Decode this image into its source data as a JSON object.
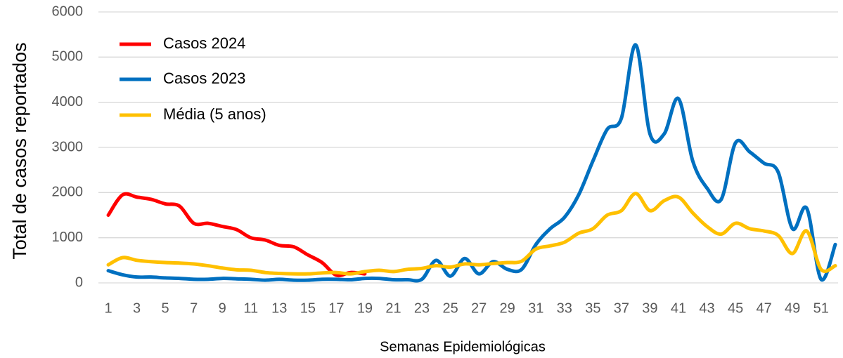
{
  "chart_data": {
    "type": "line",
    "x_label": "Semanas Epidemiológicas",
    "y_label": "Total de casos reportados",
    "x": [
      1,
      2,
      3,
      4,
      5,
      6,
      7,
      8,
      9,
      10,
      11,
      12,
      13,
      14,
      15,
      16,
      17,
      18,
      19,
      20,
      21,
      22,
      23,
      24,
      25,
      26,
      27,
      28,
      29,
      30,
      31,
      32,
      33,
      34,
      35,
      36,
      37,
      38,
      39,
      40,
      41,
      42,
      43,
      44,
      45,
      46,
      47,
      48,
      49,
      50,
      51,
      52
    ],
    "xlim": [
      1,
      52
    ],
    "xticks": [
      1,
      3,
      5,
      7,
      9,
      11,
      13,
      15,
      17,
      19,
      21,
      23,
      25,
      27,
      29,
      31,
      33,
      35,
      37,
      39,
      41,
      43,
      45,
      47,
      49,
      51
    ],
    "ylim": [
      0,
      6000
    ],
    "yticks": [
      0,
      1000,
      2000,
      3000,
      4000,
      5000,
      6000
    ],
    "grid": true,
    "legend": "upper left",
    "series": [
      {
        "name": "Casos 2024",
        "color": "#ff0000",
        "values": [
          1500,
          1950,
          1900,
          1850,
          1750,
          1700,
          1320,
          1320,
          1250,
          1180,
          1000,
          950,
          830,
          800,
          620,
          450,
          170,
          230,
          200,
          null,
          null,
          null,
          null,
          null,
          null,
          null,
          null,
          null,
          null,
          null,
          null,
          null,
          null,
          null,
          null,
          null,
          null,
          null,
          null,
          null,
          null,
          null,
          null,
          null,
          null,
          null,
          null,
          null,
          null,
          null,
          null,
          null
        ]
      },
      {
        "name": "Casos 2023",
        "color": "#0070c0",
        "values": [
          270,
          180,
          130,
          130,
          110,
          100,
          80,
          80,
          100,
          90,
          80,
          60,
          80,
          60,
          60,
          80,
          80,
          70,
          100,
          100,
          70,
          70,
          80,
          500,
          150,
          540,
          200,
          470,
          300,
          300,
          850,
          1200,
          1450,
          1950,
          2700,
          3400,
          3650,
          5270,
          3300,
          3300,
          4080,
          2700,
          2100,
          1850,
          3100,
          2900,
          2650,
          2450,
          1200,
          1650,
          80,
          850
        ]
      },
      {
        "name": "Média (5 anos)",
        "color": "#ffc000",
        "values": [
          400,
          560,
          500,
          470,
          450,
          440,
          420,
          380,
          330,
          290,
          280,
          230,
          210,
          200,
          200,
          220,
          230,
          200,
          250,
          280,
          250,
          300,
          320,
          380,
          350,
          420,
          400,
          430,
          450,
          480,
          750,
          820,
          900,
          1100,
          1200,
          1500,
          1600,
          1980,
          1600,
          1820,
          1900,
          1550,
          1250,
          1080,
          1320,
          1200,
          1150,
          1050,
          650,
          1150,
          300,
          380
        ]
      }
    ]
  }
}
